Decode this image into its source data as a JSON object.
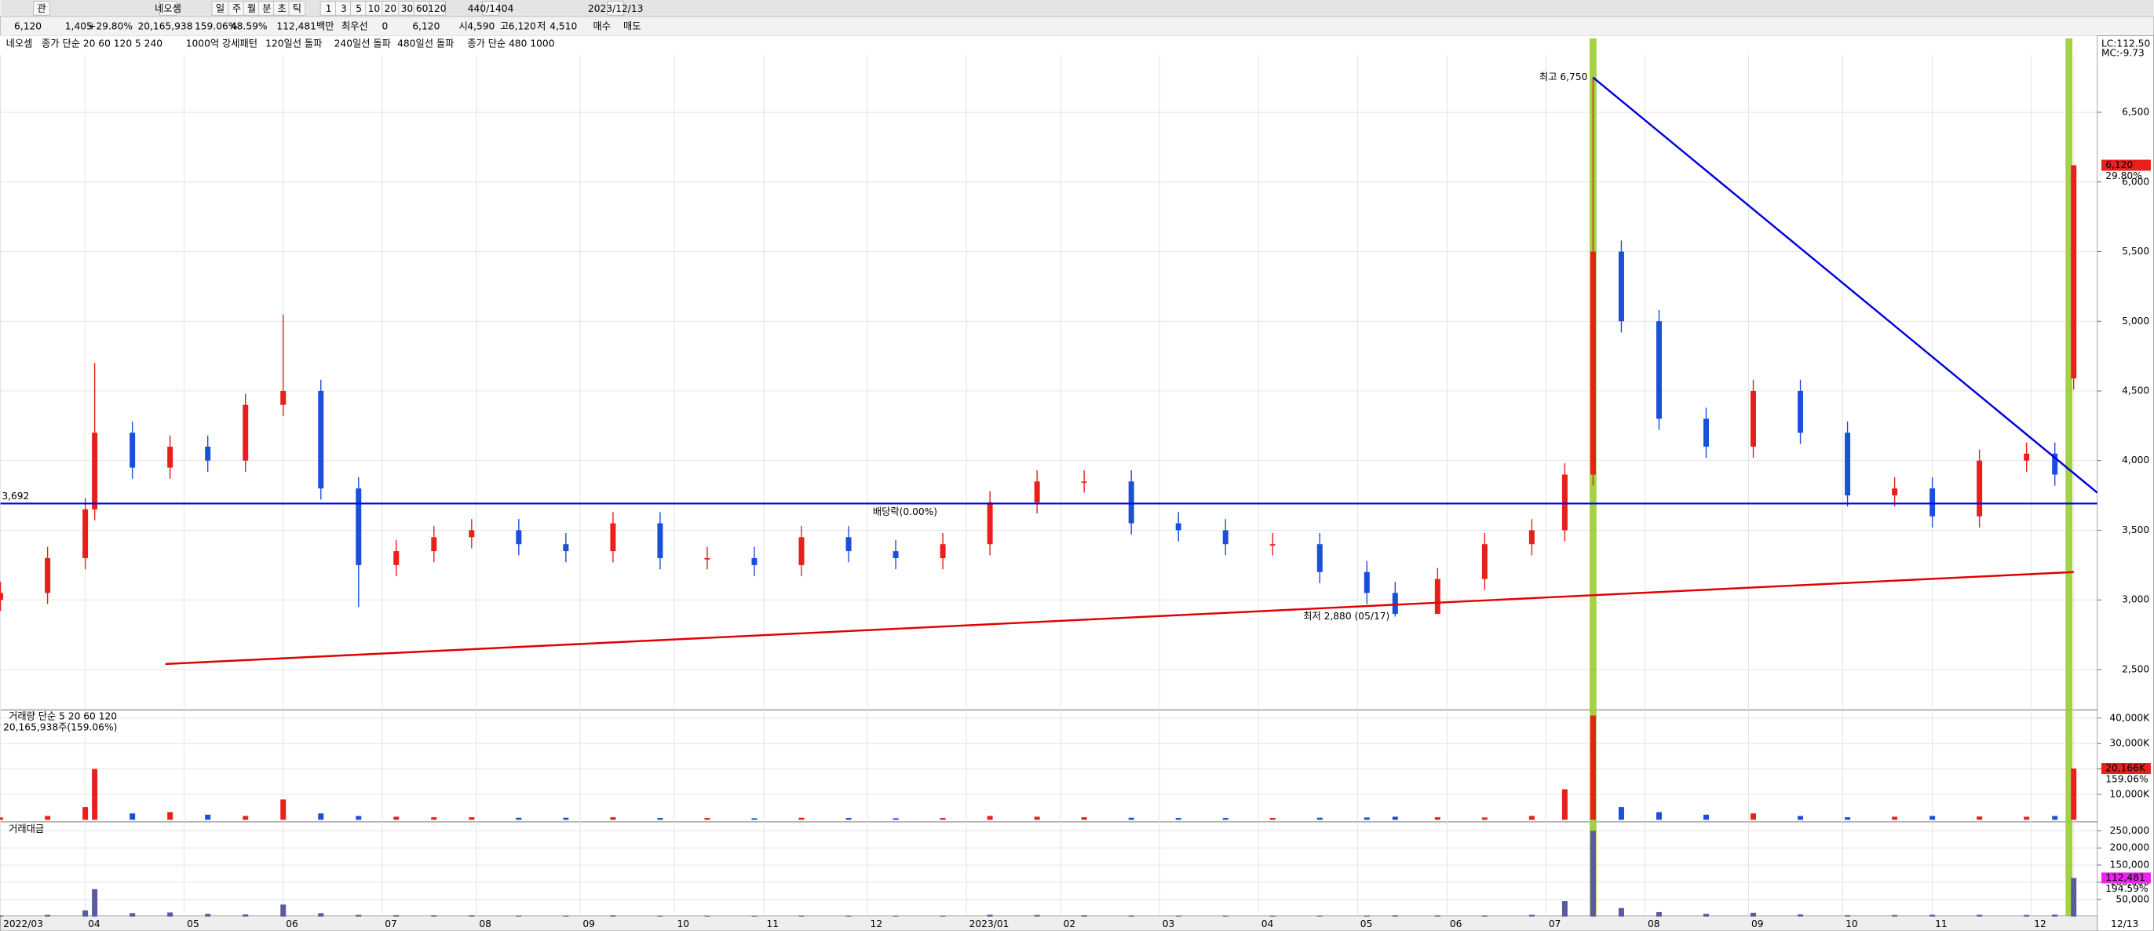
{
  "toolbar": [
    "관",
    "네오셈",
    "일",
    "주",
    "월",
    "분",
    "초",
    "틱",
    "1",
    "3",
    "5",
    "10",
    "20",
    "30",
    "60",
    "120",
    "440/1404",
    "2023/12/13"
  ],
  "info": [
    "6,120",
    "1,405",
    "+29.80%",
    "20,165,938",
    "159.06%",
    "48.59%",
    "112,481백만",
    "최우선",
    "0",
    "6,120",
    "시",
    "4,590",
    "고",
    "6,120",
    "저",
    "4,510",
    "매수",
    "매도"
  ],
  "legend": [
    "네오셈",
    "종가 단순 20 60 120 5 240",
    "1000억 강세패턴",
    "120일선 돌파",
    "240일선 돌파",
    "480일선 돌파",
    "종가 단순 480 1000"
  ],
  "chart_data": [
    {
      "type": "candlestick",
      "up_color": "#e8201c",
      "down_color": "#1a4fd8",
      "x": [
        0,
        10,
        18,
        20,
        28,
        36,
        44,
        52,
        60,
        68,
        76,
        84,
        92,
        100,
        110,
        120,
        130,
        140,
        150,
        160,
        170,
        180,
        190,
        200,
        210,
        220,
        230,
        240,
        250,
        260,
        270,
        280,
        290,
        296,
        305,
        315,
        325,
        332,
        338,
        344,
        352,
        362,
        372,
        382,
        392,
        402,
        410,
        420,
        430,
        436,
        440
      ],
      "open": [
        3000,
        3050,
        3300,
        3650,
        4200,
        3950,
        4100,
        4000,
        4400,
        4500,
        3800,
        3250,
        3350,
        3450,
        3500,
        3400,
        3350,
        3550,
        3300,
        3300,
        3250,
        3450,
        3350,
        3300,
        3400,
        3700,
        3850,
        3850,
        3550,
        3500,
        3400,
        3400,
        3200,
        3050,
        2900,
        3150,
        3400,
        3500,
        3900,
        5500,
        5000,
        4300,
        4100,
        4500,
        4200,
        3750,
        3800,
        3600,
        4000,
        4050,
        4590
      ],
      "high": [
        3130,
        3380,
        3730,
        4700,
        4280,
        4180,
        4180,
        4480,
        5050,
        4580,
        3880,
        3430,
        3530,
        3580,
        3580,
        3480,
        3630,
        3630,
        3380,
        3380,
        3530,
        3530,
        3430,
        3480,
        3780,
        3930,
        3930,
        3930,
        3630,
        3580,
        3480,
        3480,
        3280,
        3130,
        3230,
        3480,
        3580,
        3980,
        6750,
        5580,
        5080,
        4380,
        4580,
        4580,
        4280,
        3880,
        3880,
        4080,
        4130,
        4130,
        6120
      ],
      "low": [
        2920,
        2970,
        3220,
        3570,
        3870,
        3870,
        3920,
        3920,
        4320,
        3720,
        2950,
        3170,
        3270,
        3370,
        3320,
        3270,
        3270,
        3220,
        3220,
        3170,
        3170,
        3270,
        3220,
        3220,
        3320,
        3620,
        3770,
        3470,
        3420,
        3320,
        3320,
        3120,
        2970,
        2880,
        2900,
        3070,
        3320,
        3420,
        3820,
        4920,
        4220,
        4020,
        4020,
        4120,
        3670,
        3670,
        3520,
        3520,
        3920,
        3820,
        4510
      ],
      "close": [
        3050,
        3300,
        3650,
        4200,
        3950,
        4100,
        4000,
        4400,
        4500,
        3800,
        3250,
        3350,
        3450,
        3500,
        3400,
        3350,
        3550,
        3300,
        3300,
        3250,
        3450,
        3350,
        3300,
        3400,
        3700,
        3850,
        3850,
        3550,
        3500,
        3400,
        3400,
        3200,
        3050,
        2900,
        3150,
        3400,
        3500,
        3900,
        5500,
        5000,
        4300,
        4100,
        4500,
        4200,
        3750,
        3800,
        3600,
        4000,
        4050,
        3900,
        6120
      ],
      "xlim": [
        0,
        445
      ],
      "ylim": [
        2230,
        7030
      ],
      "yticks": [
        {
          "value": 2500,
          "label": "2,500"
        },
        {
          "value": 3000,
          "label": "3,000"
        },
        {
          "value": 3500,
          "label": "3,500"
        },
        {
          "value": 4000,
          "label": "4,000"
        },
        {
          "value": 4500,
          "label": "4,500"
        },
        {
          "value": 5000,
          "label": "5,000"
        },
        {
          "value": 5500,
          "label": "5,500"
        },
        {
          "value": 6000,
          "label": "6,000"
        },
        {
          "value": 6500,
          "label": "6,500"
        }
      ],
      "xticks": [
        {
          "value": 0,
          "label": "2022/03"
        },
        {
          "value": 18,
          "label": "04"
        },
        {
          "value": 39,
          "label": "05"
        },
        {
          "value": 60,
          "label": "06"
        },
        {
          "value": 81,
          "label": "07"
        },
        {
          "value": 101,
          "label": "08"
        },
        {
          "value": 123,
          "label": "09"
        },
        {
          "value": 143,
          "label": "10"
        },
        {
          "value": 162,
          "label": "11"
        },
        {
          "value": 184,
          "label": "12"
        },
        {
          "value": 205,
          "label": "2023/01"
        },
        {
          "value": 225,
          "label": "02"
        },
        {
          "value": 246,
          "label": "03"
        },
        {
          "value": 267,
          "label": "04"
        },
        {
          "value": 288,
          "label": "05"
        },
        {
          "value": 307,
          "label": "06"
        },
        {
          "value": 328,
          "label": "07"
        },
        {
          "value": 349,
          "label": "08"
        },
        {
          "value": 371,
          "label": "09"
        },
        {
          "value": 391,
          "label": "10"
        },
        {
          "value": 410,
          "label": "11"
        },
        {
          "value": 431,
          "label": "12"
        },
        {
          "value": 440,
          "label": "12/13"
        }
      ],
      "grid": true,
      "hlines": [
        {
          "value": 3692,
          "label": "3,692",
          "color": "#0000ee"
        }
      ],
      "trendlines": [
        {
          "color": "#e00000",
          "x": [
            35,
            440
          ],
          "y": [
            2540,
            3200
          ]
        },
        {
          "color": "#0000dd",
          "x": [
            338,
            445
          ],
          "y": [
            6750,
            3770
          ]
        }
      ],
      "highlights": [
        {
          "x": 338,
          "color": "#9acd32"
        },
        {
          "x": 439,
          "color": "#9acd32"
        }
      ],
      "annotations": [
        {
          "text": "최고 6,750",
          "x": 338,
          "y": 6750,
          "color": "#e00000"
        },
        {
          "text": "최저 2,880 (05/17)",
          "x": 296,
          "y": 2880,
          "color": "#0000cc"
        },
        {
          "text": "배당락(0.00%)",
          "x": 200,
          "y": 3550,
          "color": "#000000"
        }
      ],
      "marker": {
        "value": 6120,
        "label": "6,120",
        "sub": "29.80%"
      },
      "corner_texts": [
        "LC:112.50",
        "MC:-9.73"
      ]
    },
    {
      "type": "bar",
      "title": "거래량 단순 5 20 60 120",
      "subtitle": "20,165,938주(159.06%)",
      "values": [
        900,
        1500,
        5000,
        20000,
        2500,
        3000,
        2000,
        1500,
        8000,
        2500,
        1500,
        1200,
        1000,
        1000,
        800,
        800,
        1000,
        700,
        700,
        600,
        800,
        700,
        600,
        700,
        1500,
        1200,
        1000,
        800,
        700,
        700,
        700,
        800,
        900,
        1200,
        1000,
        900,
        1500,
        12000,
        41000,
        5000,
        3000,
        2000,
        2500,
        1500,
        1000,
        1200,
        1500,
        1300,
        1200,
        1500,
        20166
      ],
      "ylim": [
        0,
        41600
      ],
      "yticks": [
        {
          "value": 10000,
          "label": "10,000K"
        },
        {
          "value": 20000,
          "label": "20,000K"
        },
        {
          "value": 30000,
          "label": "30,000K"
        },
        {
          "value": 40000,
          "label": "40,000K"
        }
      ],
      "marker": {
        "value": 20166,
        "label": "20,166K",
        "sub": "159.06%"
      }
    },
    {
      "type": "bar",
      "title": "거래대금",
      "values": [
        3000,
        5000,
        18000,
        80000,
        10000,
        12000,
        8000,
        6500,
        35000,
        10000,
        5000,
        4000,
        3500,
        3500,
        2800,
        2700,
        3500,
        2300,
        2300,
        2000,
        2700,
        2400,
        2000,
        2400,
        5500,
        4600,
        3800,
        2900,
        2500,
        2400,
        2400,
        2600,
        2800,
        3500,
        3100,
        3000,
        5200,
        45000,
        250000,
        25000,
        13000,
        8200,
        11000,
        6400,
        3800,
        4600,
        5500,
        5200,
        4900,
        5900,
        112481
      ],
      "ylim": [
        0,
        270000
      ],
      "yticks": [
        {
          "value": 50000,
          "label": "50,000"
        },
        {
          "value": 100000,
          "label": "100,000"
        },
        {
          "value": 150000,
          "label": "150,000"
        },
        {
          "value": 200000,
          "label": "200,000"
        },
        {
          "value": 250000,
          "label": "250,000"
        }
      ],
      "marker": {
        "value": 112481,
        "label": "112,481",
        "sub": "194.59%"
      }
    }
  ]
}
